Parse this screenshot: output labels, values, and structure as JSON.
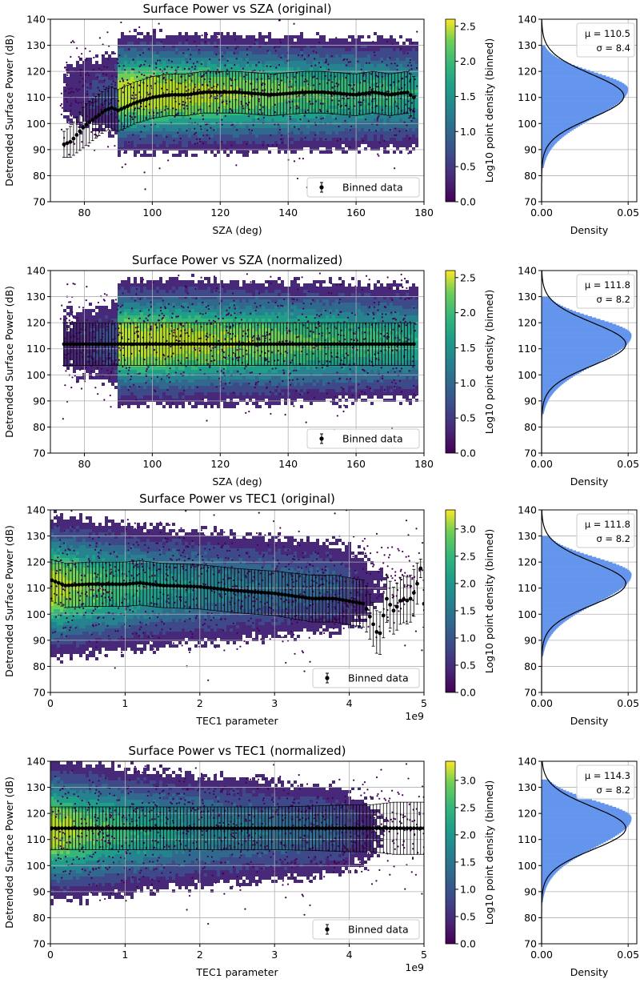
{
  "chart_data": [
    {
      "type": "scatter",
      "id": "sza-original",
      "title": "Surface Power vs SZA (original)",
      "xlabel": "SZA (deg)",
      "ylabel": "Detrended Surface Power (dB)",
      "xlim": [
        70,
        180
      ],
      "ylim": [
        70,
        140
      ],
      "xticks": [
        80,
        100,
        120,
        140,
        160,
        180
      ],
      "xtick_labels": [
        "80",
        "100",
        "120",
        "140",
        "160",
        "180"
      ],
      "yticks": [
        70,
        80,
        90,
        100,
        110,
        120,
        130,
        140
      ],
      "x_offset_label": "",
      "grid": true,
      "legend": {
        "label": "Binned data",
        "placement": "lower-right"
      },
      "colorbar": {
        "label": "Log10 point density (binned)",
        "range": [
          0,
          2.6
        ],
        "ticks": [
          "0.0",
          "0.5",
          "1.0",
          "1.5",
          "2.0",
          "2.5"
        ],
        "tick_values": [
          0,
          0.5,
          1.0,
          1.5,
          2.0,
          2.5
        ]
      },
      "binned_series": {
        "name": "Binned data",
        "x": [
          74,
          76,
          78,
          80,
          82,
          84,
          86,
          88,
          90,
          95,
          100,
          105,
          110,
          115,
          120,
          125,
          130,
          135,
          140,
          145,
          150,
          155,
          160,
          165,
          170,
          175,
          177
        ],
        "y": [
          92,
          93,
          96,
          99,
          101,
          103,
          105,
          106,
          105,
          108,
          110,
          111,
          111,
          112,
          112,
          112,
          111.5,
          111,
          111.5,
          112,
          112,
          111.5,
          111,
          112,
          111,
          112,
          110
        ],
        "yerr": [
          5,
          6,
          7,
          8,
          8,
          8,
          8,
          8,
          8,
          8,
          8,
          8,
          8,
          8,
          8,
          8,
          8,
          8,
          8,
          8,
          8,
          8,
          8,
          8,
          8,
          8,
          8
        ]
      },
      "density_shape": {
        "x_start": 73,
        "dense_start": 89,
        "x_end": 178,
        "center": 112,
        "half_width": 20
      },
      "histogram": {
        "xlabel": "Density",
        "xlim": [
          0,
          0.055
        ],
        "xticks": [
          "0.00",
          "0.05"
        ],
        "ylim": [
          70,
          140
        ],
        "yticks": [
          70,
          80,
          90,
          100,
          110,
          120,
          130,
          140
        ],
        "mu": 110.5,
        "sigma": 8.4,
        "annotation_mu": "μ = 110.5",
        "annotation_sigma": "σ = 8.4",
        "hist_color": "#6495ed",
        "peak_density": 0.05,
        "hist_peak_y": 113,
        "hist_range": [
          83,
          130
        ]
      }
    },
    {
      "type": "scatter",
      "id": "sza-normalized",
      "title": "Surface Power vs SZA (normalized)",
      "xlabel": "SZA (deg)",
      "ylabel": "Detrended Surface Power (dB)",
      "xlim": [
        70,
        180
      ],
      "ylim": [
        70,
        140
      ],
      "xticks": [
        80,
        100,
        120,
        140,
        160,
        180
      ],
      "xtick_labels": [
        "80",
        "100",
        "120",
        "140",
        "160",
        "180"
      ],
      "yticks": [
        70,
        80,
        90,
        100,
        110,
        120,
        130,
        140
      ],
      "x_offset_label": "",
      "grid": true,
      "legend": {
        "label": "Binned data",
        "placement": "lower-right"
      },
      "colorbar": {
        "label": "Log10 point density (binned)",
        "range": [
          0,
          2.6
        ],
        "ticks": [
          "0.0",
          "0.5",
          "1.0",
          "1.5",
          "2.0",
          "2.5"
        ],
        "tick_values": [
          0,
          0.5,
          1.0,
          1.5,
          2.0,
          2.5
        ]
      },
      "binned_series": {
        "name": "Binned data",
        "x": [
          74,
          80,
          90,
          100,
          110,
          120,
          130,
          140,
          150,
          160,
          170,
          177
        ],
        "y": [
          111.8,
          111.8,
          111.8,
          111.8,
          111.8,
          111.8,
          111.8,
          111.8,
          111.8,
          111.8,
          111.8,
          111.8
        ],
        "yerr": [
          8.2,
          8.2,
          8.2,
          8.2,
          8.2,
          8.2,
          8.2,
          8.2,
          8.2,
          8.2,
          8.2,
          8.2
        ]
      },
      "density_shape": {
        "x_start": 73,
        "dense_start": 89,
        "x_end": 178,
        "center": 113,
        "half_width": 21
      },
      "histogram": {
        "xlabel": "Density",
        "xlim": [
          0,
          0.055
        ],
        "xticks": [
          "0.00",
          "0.05"
        ],
        "ylim": [
          70,
          140
        ],
        "yticks": [
          70,
          80,
          90,
          100,
          110,
          120,
          130,
          140
        ],
        "mu": 111.8,
        "sigma": 8.2,
        "annotation_mu": "μ = 111.8",
        "annotation_sigma": "σ = 8.2",
        "hist_color": "#6495ed",
        "peak_density": 0.052,
        "hist_peak_y": 115,
        "hist_range": [
          85,
          130
        ]
      }
    },
    {
      "type": "scatter",
      "id": "tec1-original",
      "title": "Surface Power vs TEC1 (original)",
      "xlabel": "TEC1 parameter",
      "ylabel": "Detrended Surface Power (dB)",
      "xlim": [
        0,
        5
      ],
      "ylim": [
        70,
        140
      ],
      "xticks": [
        0,
        1,
        2,
        3,
        4,
        5
      ],
      "xtick_labels": [
        "0",
        "1",
        "2",
        "3",
        "4",
        "5"
      ],
      "yticks": [
        70,
        80,
        90,
        100,
        110,
        120,
        130,
        140
      ],
      "x_offset_label": "1e9",
      "grid": true,
      "legend": {
        "label": "Binned data",
        "placement": "lower-right"
      },
      "colorbar": {
        "label": "Log10 point density (binned)",
        "range": [
          0,
          3.35
        ],
        "ticks": [
          "0.0",
          "0.5",
          "1.0",
          "1.5",
          "2.0",
          "2.5",
          "3.0"
        ],
        "tick_values": [
          0,
          0.5,
          1.0,
          1.5,
          2.0,
          2.5,
          3.0
        ]
      },
      "binned_series": {
        "name": "Binned data",
        "x": [
          0.02,
          0.2,
          0.5,
          1.0,
          1.2,
          1.5,
          2.0,
          2.5,
          3.0,
          3.5,
          3.8,
          4.0,
          4.2,
          4.4,
          4.5,
          4.6,
          4.7,
          4.8,
          4.9,
          4.95,
          5.0
        ],
        "y": [
          113,
          111,
          111.5,
          111.5,
          112,
          111,
          110.5,
          109,
          108,
          106,
          106,
          105,
          104,
          91,
          106,
          101,
          106,
          105,
          110,
          119,
          104
        ],
        "yerr": [
          8,
          8.5,
          8.5,
          8.5,
          8.5,
          8.5,
          8.5,
          8.5,
          8.5,
          9,
          9,
          9,
          9,
          8,
          9,
          9,
          9,
          9,
          9,
          3,
          9
        ]
      },
      "density_shape": {
        "x_start": 0,
        "dense_start": 0,
        "x_end": 5,
        "center": 111,
        "half_width": 22
      },
      "histogram": {
        "xlabel": "Density",
        "xlim": [
          0,
          0.055
        ],
        "xticks": [
          "0.00",
          "0.05"
        ],
        "ylim": [
          70,
          140
        ],
        "yticks": [
          70,
          80,
          90,
          100,
          110,
          120,
          130,
          140
        ],
        "mu": 111.8,
        "sigma": 8.2,
        "annotation_mu": "μ = 111.8",
        "annotation_sigma": "σ = 8.2",
        "hist_color": "#6495ed",
        "peak_density": 0.052,
        "hist_peak_y": 115,
        "hist_range": [
          84,
          130
        ]
      }
    },
    {
      "type": "scatter",
      "id": "tec1-normalized",
      "title": "Surface Power vs TEC1 (normalized)",
      "xlabel": "TEC1 parameter",
      "ylabel": "Detrended Surface Power (dB)",
      "xlim": [
        0,
        5
      ],
      "ylim": [
        70,
        140
      ],
      "xticks": [
        0,
        1,
        2,
        3,
        4,
        5
      ],
      "xtick_labels": [
        "0",
        "1",
        "2",
        "3",
        "4",
        "5"
      ],
      "yticks": [
        70,
        80,
        90,
        100,
        110,
        120,
        130,
        140
      ],
      "x_offset_label": "1e9",
      "grid": true,
      "legend": {
        "label": "Binned data",
        "placement": "lower-right"
      },
      "colorbar": {
        "label": "Log10 point density (binned)",
        "range": [
          0,
          3.35
        ],
        "ticks": [
          "0.0",
          "0.5",
          "1.0",
          "1.5",
          "2.0",
          "2.5",
          "3.0"
        ],
        "tick_values": [
          0,
          0.5,
          1.0,
          1.5,
          2.0,
          2.5,
          3.0
        ]
      },
      "binned_series": {
        "name": "Binned data",
        "x": [
          0.02,
          0.5,
          1.0,
          1.5,
          2.0,
          2.5,
          3.0,
          3.5,
          4.0,
          4.3,
          4.6,
          4.8,
          5.0
        ],
        "y": [
          114.3,
          114.3,
          114.3,
          114.3,
          114.3,
          114.3,
          114.3,
          114.3,
          114.3,
          114.3,
          114.3,
          114.3,
          114.3
        ],
        "yerr": [
          8.2,
          8.2,
          8.2,
          8.2,
          8.2,
          8.2,
          8.2,
          8.5,
          9,
          9,
          10,
          10,
          10
        ]
      },
      "density_shape": {
        "x_start": 0,
        "dense_start": 0,
        "x_end": 5,
        "center": 114,
        "half_width": 22
      },
      "histogram": {
        "xlabel": "Density",
        "xlim": [
          0,
          0.055
        ],
        "xticks": [
          "0.00",
          "0.05"
        ],
        "ylim": [
          70,
          140
        ],
        "yticks": [
          70,
          80,
          90,
          100,
          110,
          120,
          130,
          140
        ],
        "mu": 114.3,
        "sigma": 8.2,
        "annotation_mu": "μ = 114.3",
        "annotation_sigma": "σ = 8.2",
        "hist_color": "#6495ed",
        "peak_density": 0.052,
        "hist_peak_y": 118,
        "hist_range": [
          86,
          133
        ]
      }
    }
  ]
}
